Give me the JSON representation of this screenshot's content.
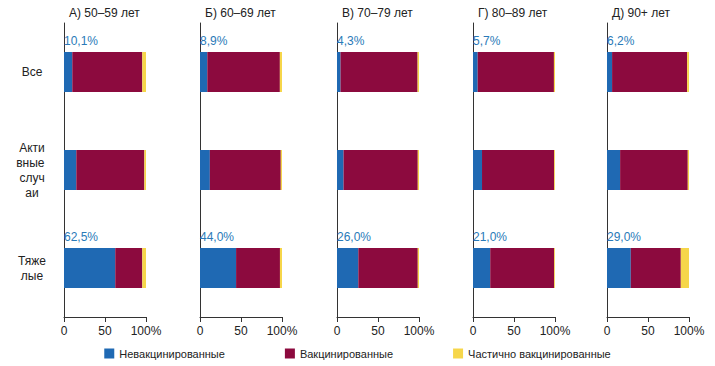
{
  "chart_data": [
    {
      "type": "bar",
      "title": "А) 50–59 лет",
      "orientation": "horizontal",
      "stacked": true,
      "grid": false,
      "legend": "bottom",
      "categories": [
        "Все",
        "Активные случаи",
        "Тяжелые"
      ],
      "xlim": [
        0,
        100
      ],
      "xticks": [
        0,
        50,
        {
          "value": 100,
          "label": "100%"
        }
      ],
      "series": [
        {
          "name": "Невакцинированные",
          "color": "#1f69b3",
          "values": [
            10.1,
            15,
            62.5
          ],
          "data_labels": true,
          "value_labels": [
            "10,1%",
            null,
            "62,5%"
          ]
        },
        {
          "name": "Вакцинированные",
          "color": "#8c0a3e",
          "values": [
            85.4,
            83,
            33
          ]
        },
        {
          "name": "Частично вакцинированные",
          "color": "#f6d64a",
          "values": [
            4.5,
            2,
            4.5
          ]
        }
      ]
    },
    {
      "type": "bar",
      "title": "Б) 60–69 лет",
      "orientation": "horizontal",
      "stacked": true,
      "grid": false,
      "tick_labels": "x",
      "categories": [
        "Все",
        "Активные случаи",
        "Тяжелые"
      ],
      "xlim": [
        0,
        100
      ],
      "xticks": [
        0,
        50,
        {
          "value": 100,
          "label": "100%"
        }
      ],
      "series": [
        {
          "name": "Невакцинированные",
          "color": "#1f69b3",
          "values": [
            8.9,
            12,
            44.0
          ],
          "data_labels": true,
          "value_labels": [
            "8,9%",
            null,
            "44,0%"
          ]
        },
        {
          "name": "Вакцинированные",
          "color": "#8c0a3e",
          "values": [
            88.5,
            86.5,
            53.5
          ]
        },
        {
          "name": "Частично вакцинированные",
          "color": "#f6d64a",
          "values": [
            2.6,
            1.5,
            2.5
          ]
        }
      ]
    },
    {
      "type": "bar",
      "title": "В) 70–79 лет",
      "orientation": "horizontal",
      "stacked": true,
      "grid": false,
      "tick_labels": "x",
      "categories": [
        "Все",
        "Активные случаи",
        "Тяжелые"
      ],
      "xlim": [
        0,
        100
      ],
      "xticks": [
        0,
        50,
        {
          "value": 100,
          "label": "100%"
        }
      ],
      "series": [
        {
          "name": "Невакцинированные",
          "color": "#1f69b3",
          "values": [
            4.3,
            8,
            26.0
          ],
          "data_labels": true,
          "value_labels": [
            "4,3%",
            null,
            "26,0%"
          ]
        },
        {
          "name": "Вакцинированные",
          "color": "#8c0a3e",
          "values": [
            94,
            90.5,
            72.5
          ]
        },
        {
          "name": "Частично вакцинированные",
          "color": "#f6d64a",
          "values": [
            1.7,
            1.5,
            1.5
          ]
        }
      ]
    },
    {
      "type": "bar",
      "title": "Г) 80–89 лет",
      "orientation": "horizontal",
      "stacked": true,
      "grid": false,
      "tick_labels": "x",
      "categories": [
        "Все",
        "Активные случаи",
        "Тяжелые"
      ],
      "xlim": [
        0,
        100
      ],
      "xticks": [
        0,
        50,
        {
          "value": 100,
          "label": "100%"
        }
      ],
      "series": [
        {
          "name": "Невакцинированные",
          "color": "#1f69b3",
          "values": [
            5.7,
            11,
            21.0
          ],
          "data_labels": true,
          "value_labels": [
            "5,7%",
            null,
            "21,0%"
          ]
        },
        {
          "name": "Вакцинированные",
          "color": "#8c0a3e",
          "values": [
            93,
            88,
            78
          ]
        },
        {
          "name": "Частично вакцинированные",
          "color": "#f6d64a",
          "values": [
            1.3,
            1,
            1
          ]
        }
      ]
    },
    {
      "type": "bar",
      "title": "Д) 90+ лет",
      "orientation": "horizontal",
      "stacked": true,
      "grid": false,
      "tick_labels": "x",
      "categories": [
        "Все",
        "Активные случаи",
        "Тяжелые"
      ],
      "xlim": [
        0,
        100
      ],
      "xticks": [
        0,
        50,
        {
          "value": 100,
          "label": "100%"
        }
      ],
      "series": [
        {
          "name": "Невакцинированные",
          "color": "#1f69b3",
          "values": [
            6.2,
            16,
            29.0
          ],
          "data_labels": true,
          "value_labels": [
            "6,2%",
            null,
            "29,0%"
          ]
        },
        {
          "name": "Вакцинированные",
          "color": "#8c0a3e",
          "values": [
            91.5,
            82.5,
            61
          ]
        },
        {
          "name": "Частично вакцинированные",
          "color": "#f6d64a",
          "values": [
            2.3,
            1.5,
            10
          ]
        }
      ]
    }
  ]
}
